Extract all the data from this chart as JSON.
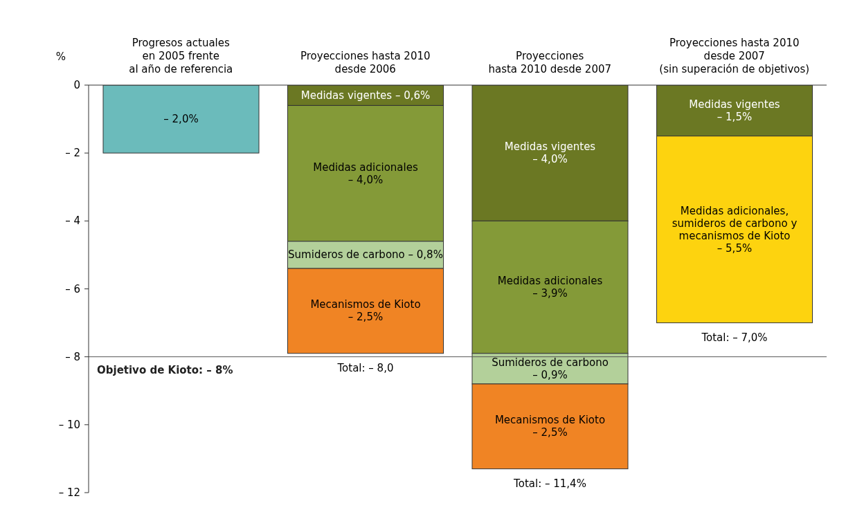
{
  "chart_data": {
    "type": "bar",
    "stacked": true,
    "categories": [
      "Progresos actuales\nen 2005 frente\nal año de referencia",
      "Proyecciones hasta 2010\ndesde 2006",
      "Proyecciones\nhasta 2010 desde 2007",
      "Proyecciones hasta 2010\ndesde 2007\n(sin superación de objetivos)"
    ],
    "ylabel": "%",
    "series": [
      {
        "color": "#6bbbbb",
        "values": [
          -2.0,
          null,
          null,
          null
        ],
        "value_labels": [
          "– 2,0%",
          null,
          null,
          null
        ]
      },
      {
        "name": "Medidas vigentes",
        "color": "#6b7823",
        "values": [
          null,
          -0.6,
          -4.0,
          -1.5
        ],
        "value_labels": [
          null,
          "– 0,6%",
          "– 4,0%",
          "– 1,5%"
        ]
      },
      {
        "name": "Medidas adicionales",
        "color": "#849a38",
        "values": [
          null,
          -4.0,
          -3.9,
          null
        ],
        "value_labels": [
          null,
          "– 4,0%",
          "– 3,9%",
          null
        ]
      },
      {
        "name": "Sumideros de carbono",
        "color": "#b3d09a",
        "values": [
          null,
          -0.8,
          -0.9,
          null
        ],
        "value_labels": [
          null,
          "– 0,8%",
          "– 0,9%",
          null
        ]
      },
      {
        "name": "Mecanismos de Kioto",
        "color": "#f08424",
        "values": [
          null,
          -2.5,
          -2.5,
          null
        ],
        "value_labels": [
          null,
          "– 2,5%",
          "– 2,5%",
          null
        ]
      },
      {
        "name": "Medidas adicionales, sumideros de carbono y mecanismos de Kioto",
        "color": "#fdd30f",
        "values": [
          null,
          null,
          null,
          -5.5
        ],
        "value_labels": [
          null,
          null,
          null,
          "– 5,5%"
        ]
      }
    ],
    "totals": [
      null,
      "Total: – 8,0",
      "Total: – 11,4%",
      "Total: – 7,0%"
    ],
    "ylim": [
      -12,
      0
    ],
    "yticks": [
      0,
      {
        "value": -2,
        "label": "– 2"
      },
      {
        "value": -4,
        "label": "– 4"
      },
      {
        "value": -6,
        "label": "– 6"
      },
      {
        "value": -8,
        "label": "– 8"
      },
      {
        "value": -10,
        "label": "– 10"
      },
      {
        "value": -12,
        "label": "– 12"
      }
    ],
    "ref_lines": [
      {
        "axis": "y",
        "value": -8,
        "label": "Objetivo de Kioto: – 8%",
        "color": "#555555"
      }
    ],
    "grid": false,
    "legend": false
  }
}
